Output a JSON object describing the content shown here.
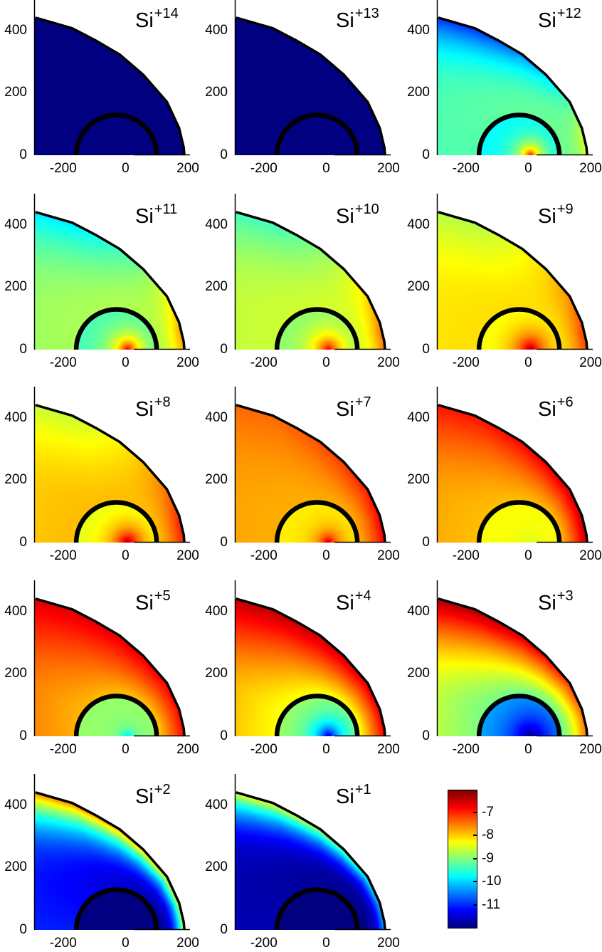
{
  "chart_data": {
    "type": "heatmap",
    "colormap": "jet",
    "clim": [
      -12.0,
      -6.05
    ],
    "xlim": [
      -300,
      200
    ],
    "ylim": [
      0,
      500
    ],
    "xticks": [
      -200,
      0,
      200
    ],
    "xtick_labels": [
      "-200",
      "0",
      "200"
    ],
    "yticks": [
      0,
      200,
      400
    ],
    "ytick_labels": [
      "0",
      "200",
      "400"
    ],
    "colorbar": {
      "ticks": [
        -7,
        -8,
        -9,
        -10,
        -11
      ],
      "tick_labels": [
        "-7",
        "-8",
        "-9",
        "-10",
        "-11"
      ],
      "placement": "bottom-right"
    },
    "shock_boundary": [
      [
        182,
        0
      ],
      [
        180,
        25
      ],
      [
        165,
        87
      ],
      [
        126,
        171
      ],
      [
        50,
        258
      ],
      [
        -26,
        323
      ],
      [
        -103,
        368
      ],
      [
        -178,
        407
      ],
      [
        -296,
        441
      ]
    ],
    "inner_boundary": {
      "center_x": -36,
      "center_y": 0,
      "radius": 129
    },
    "panels": [
      {
        "base": "Si",
        "charge": "+14",
        "field": {
          "peak": -12,
          "ring": -12,
          "near": -12,
          "far": -12,
          "nose": -12,
          "flank": -12,
          "width": 40,
          "p": 1
        }
      },
      {
        "base": "Si",
        "charge": "+13",
        "field": {
          "peak": -12,
          "ring": -12,
          "near": -12,
          "far": -12,
          "nose": -12,
          "flank": -12,
          "width": 40,
          "p": 1
        }
      },
      {
        "base": "Si",
        "charge": "+12",
        "field": {
          "peak": -6.9,
          "ring": -9.8,
          "near": -9.1,
          "far": -9.3,
          "nose": -8.5,
          "flank": -11.0,
          "width": 35,
          "p": 2.5
        }
      },
      {
        "base": "Si",
        "charge": "+11",
        "field": {
          "peak": -6.6,
          "ring": -9.4,
          "near": -8.7,
          "far": -8.8,
          "nose": -7.7,
          "flank": -9.9,
          "width": 40,
          "p": 1.8
        }
      },
      {
        "base": "Si",
        "charge": "+10",
        "field": {
          "peak": -6.6,
          "ring": -9.0,
          "near": -8.5,
          "far": -8.6,
          "nose": -7.4,
          "flank": -9.4,
          "width": 42,
          "p": 1.8
        }
      },
      {
        "base": "Si",
        "charge": "+9",
        "field": {
          "peak": -6.2,
          "ring": -8.4,
          "near": -8.1,
          "far": -8.1,
          "nose": -7.1,
          "flank": -8.7,
          "width": 45,
          "p": 1.6
        }
      },
      {
        "base": "Si",
        "charge": "+8",
        "field": {
          "peak": -6.2,
          "ring": -8.5,
          "near": -7.9,
          "far": -7.9,
          "nose": -6.9,
          "flank": -8.6,
          "width": 45,
          "p": 1.5
        }
      },
      {
        "base": "Si",
        "charge": "+7",
        "field": {
          "peak": -6.4,
          "ring": -8.2,
          "near": -7.8,
          "far": -7.8,
          "nose": -6.7,
          "flank": -7.4,
          "width": 30,
          "p": 1.4
        }
      },
      {
        "base": "Si",
        "charge": "+6",
        "field": {
          "peak": -8.5,
          "ring": -8.3,
          "near": -7.9,
          "far": -7.9,
          "nose": -6.4,
          "flank": -6.9,
          "width": 30,
          "p": 1.3
        }
      },
      {
        "base": "Si",
        "charge": "+5",
        "field": {
          "peak": -10.0,
          "ring": -8.9,
          "near": -8.1,
          "far": -7.8,
          "nose": -6.8,
          "flank": -6.6,
          "width": 20,
          "p": 1.0
        }
      },
      {
        "base": "Si",
        "charge": "+4",
        "field": {
          "peak": -11.6,
          "ring": -8.8,
          "near": -8.5,
          "far": -8.3,
          "nose": -6.7,
          "flank": -6.4,
          "width": 45,
          "p": 1.0
        }
      },
      {
        "base": "Si",
        "charge": "+3",
        "field": {
          "peak": -12.0,
          "ring": -10.1,
          "near": -9.3,
          "far": -9.0,
          "nose": -7.4,
          "flank": -6.3,
          "width": 70,
          "p": 1.2
        }
      },
      {
        "base": "Si",
        "charge": "+2",
        "field": {
          "peak": -12,
          "ring": -12,
          "near": -11.9,
          "far": -11.1,
          "nose": -8.4,
          "flank": -7.5,
          "width": 40,
          "p": 2.6
        }
      },
      {
        "base": "Si",
        "charge": "+1",
        "field": {
          "peak": -12,
          "ring": -12,
          "near": -12,
          "far": -11.7,
          "nose": -10.0,
          "flank": -8.3,
          "width": 40,
          "p": 3.2
        }
      }
    ]
  }
}
